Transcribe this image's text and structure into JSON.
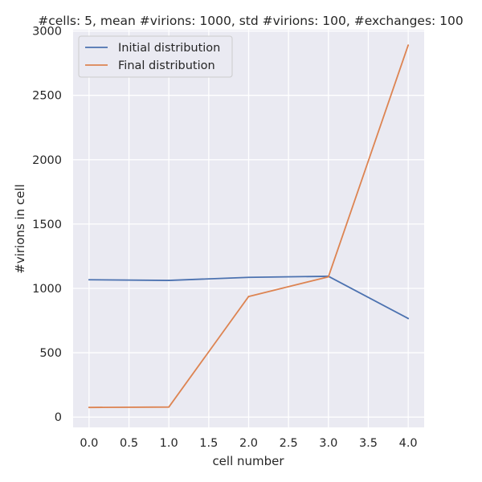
{
  "chart_data": {
    "type": "line",
    "title": "#cells: 5, mean #virions: 1000, std #virions: 100, #exchanges: 100",
    "xlabel": "cell number",
    "ylabel": "#virions in cell",
    "x": [
      0,
      1,
      2,
      3,
      4
    ],
    "xlim": [
      -0.2,
      4.2
    ],
    "ylim": [
      -80,
      3010
    ],
    "xticks": [
      0.0,
      0.5,
      1.0,
      1.5,
      2.0,
      2.5,
      3.0,
      3.5,
      4.0
    ],
    "xtick_labels": [
      "0.0",
      "0.5",
      "1.0",
      "1.5",
      "2.0",
      "2.5",
      "3.0",
      "3.5",
      "4.0"
    ],
    "yticks": [
      0,
      500,
      1000,
      1500,
      2000,
      2500,
      3000
    ],
    "ytick_labels": [
      "0",
      "500",
      "1000",
      "1500",
      "2000",
      "2500",
      "3000"
    ],
    "grid": true,
    "legend_position": "top-left",
    "series": [
      {
        "name": "Initial distribution",
        "color": "#4c72b0",
        "values": [
          1067,
          1062,
          1086,
          1094,
          766
        ]
      },
      {
        "name": "Final distribution",
        "color": "#dd8452",
        "values": [
          75,
          78,
          937,
          1090,
          2890
        ]
      }
    ]
  }
}
